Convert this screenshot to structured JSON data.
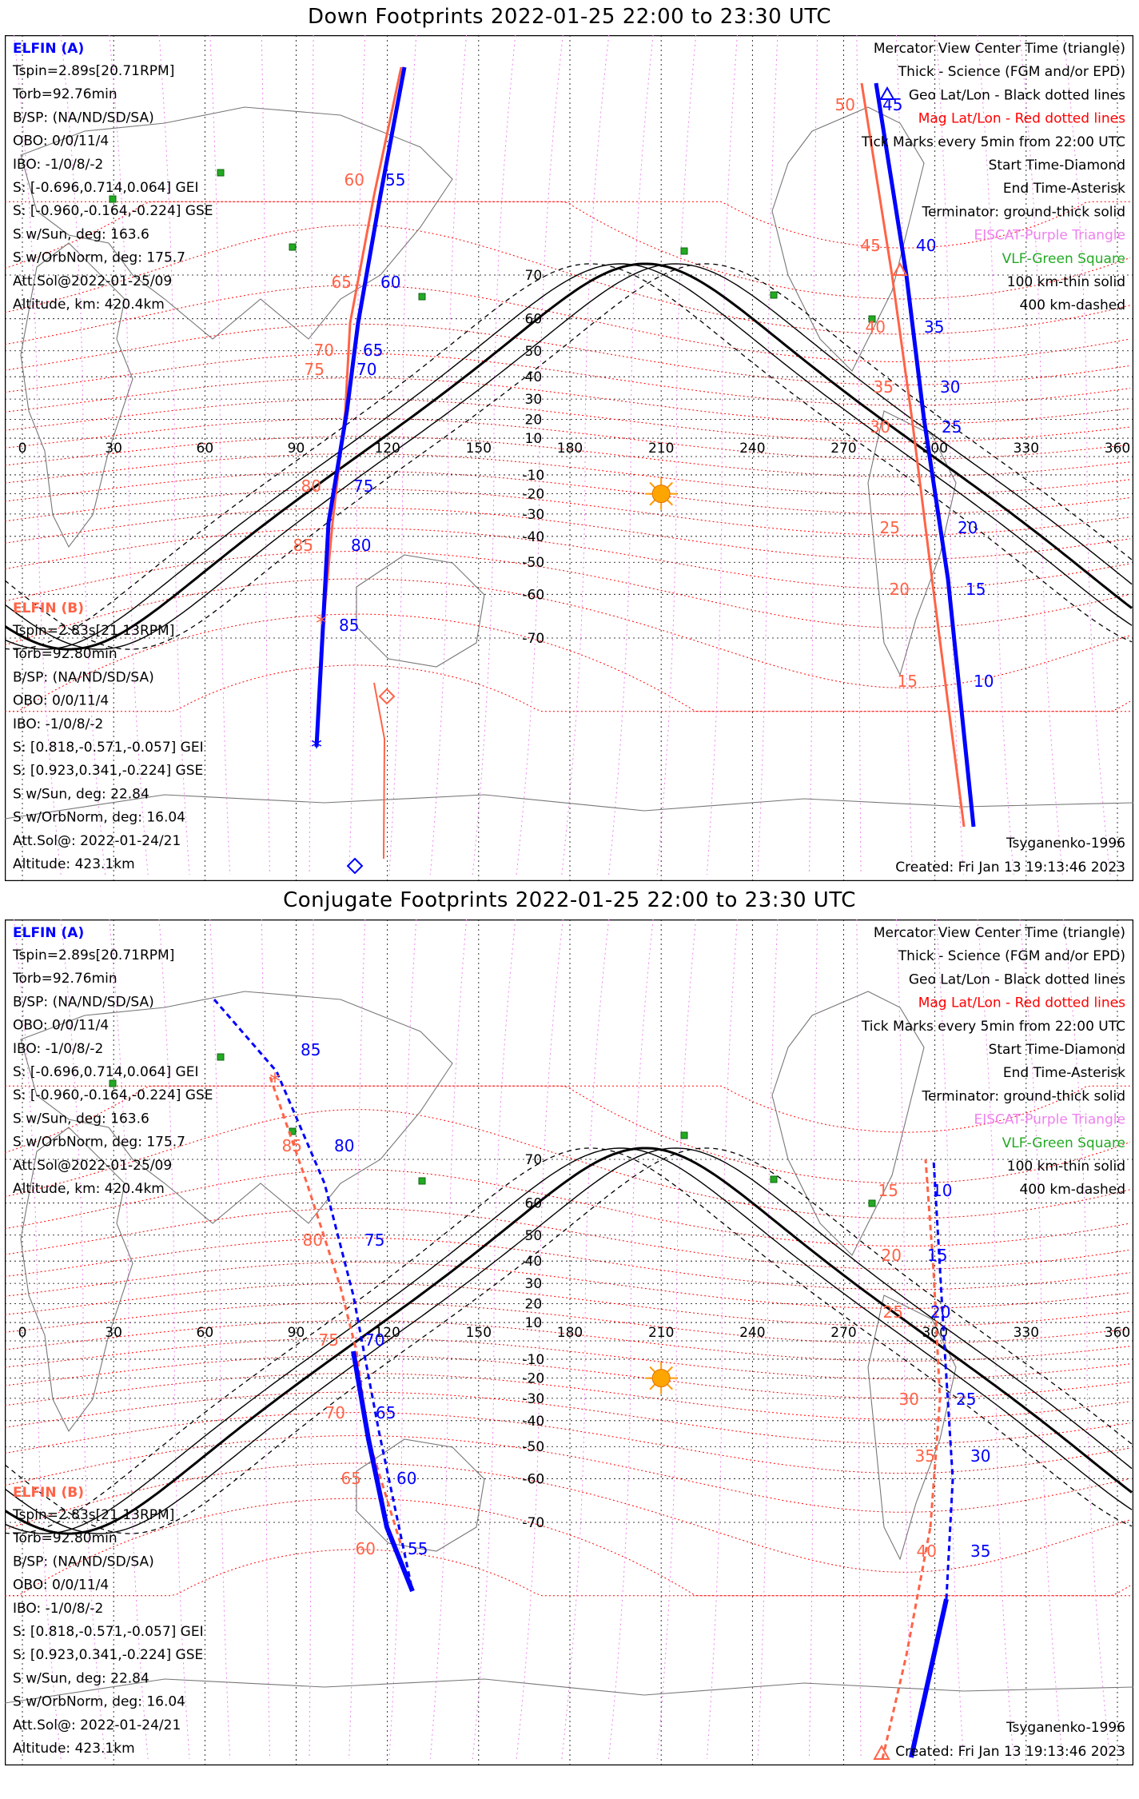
{
  "panels": [
    {
      "title": "Down Footprints 2022-01-25 22:00 to 23:30 UTC",
      "elfin_a": {
        "name": "ELFIN (A)",
        "lines": [
          "Tspin=2.89s[20.71RPM]",
          "Torb=92.76min",
          "B/SP: (NA/ND/SD/SA)",
          "OBO: 0/0/11/4",
          "IBO: -1/0/8/-2",
          "S: [-0.696,0.714,0.064] GEI",
          "S: [-0.960,-0.164,-0.224] GSE",
          "S w/Sun, deg: 163.6",
          "S w/OrbNorm, deg: 175.7",
          "Att.Sol@2022-01-25/09",
          "Altitude, km: 420.4km"
        ]
      },
      "elfin_b": {
        "name": "ELFIN (B)",
        "lines": [
          "Tspin=2.83s[21.13RPM]",
          "Torb=92.80min",
          "B/SP: (NA/ND/SD/SA)",
          "OBO: 0/0/11/4",
          "IBO: -1/0/8/-2",
          "S: [0.818,-0.571,-0.057] GEI",
          "S: [0.923,0.341,-0.224] GSE",
          "S w/Sun, deg: 22.84",
          "S w/OrbNorm, deg: 16.04",
          "Att.Sol@: 2022-01-24/21",
          "Altitude: 423.1km"
        ]
      },
      "legend": [
        {
          "text": "Mercator View Center Time (triangle)",
          "color": "#000000"
        },
        {
          "text": "Thick - Science (FGM and/or EPD)",
          "color": "#000000"
        },
        {
          "text": "Geo Lat/Lon - Black dotted lines",
          "color": "#000000"
        },
        {
          "text": "Mag Lat/Lon - Red dotted lines",
          "color": "#ff0000"
        },
        {
          "text": "Tick Marks every 5min from 22:00 UTC",
          "color": "#000000"
        },
        {
          "text": "Start Time-Diamond",
          "color": "#000000"
        },
        {
          "text": "End Time-Asterisk",
          "color": "#000000"
        },
        {
          "text": "Terminator: ground-thick solid",
          "color": "#000000"
        },
        {
          "text": "EISCAT-Purple Triangle",
          "color": "#ee82ee"
        },
        {
          "text": "VLF-Green Square",
          "color": "#22aa22"
        },
        {
          "text": "100 km-thin solid",
          "color": "#000000"
        },
        {
          "text": "400 km-dashed",
          "color": "#000000"
        }
      ],
      "model": "Tsyganenko-1996",
      "created": "Created: Fri Jan 13 19:13:46 2023"
    },
    {
      "title": "Conjugate Footprints 2022-01-25 22:00 to 23:30 UTC",
      "elfin_a": {
        "name": "ELFIN (A)",
        "lines": [
          "Tspin=2.89s[20.71RPM]",
          "Torb=92.76min",
          "B/SP: (NA/ND/SD/SA)",
          "OBO: 0/0/11/4",
          "IBO: -1/0/8/-2",
          "S: [-0.696,0.714,0.064] GEI",
          "S: [-0.960,-0.164,-0.224] GSE",
          "S w/Sun, deg: 163.6",
          "S w/OrbNorm, deg: 175.7",
          "Att.Sol@2022-01-25/09",
          "Altitude, km: 420.4km"
        ]
      },
      "elfin_b": {
        "name": "ELFIN (B)",
        "lines": [
          "Tspin=2.83s[21.13RPM]",
          "Torb=92.80min",
          "B/SP: (NA/ND/SD/SA)",
          "OBO: 0/0/11/4",
          "IBO: -1/0/8/-2",
          "S: [0.818,-0.571,-0.057] GEI",
          "S: [0.923,0.341,-0.224] GSE",
          "S w/Sun, deg: 22.84",
          "S w/OrbNorm, deg: 16.04",
          "Att.Sol@: 2022-01-24/21",
          "Altitude: 423.1km"
        ]
      },
      "legend": [
        {
          "text": "Mercator View Center Time (triangle)",
          "color": "#000000"
        },
        {
          "text": "Thick - Science (FGM and/or EPD)",
          "color": "#000000"
        },
        {
          "text": "Geo Lat/Lon - Black dotted lines",
          "color": "#000000"
        },
        {
          "text": "Mag Lat/Lon - Red dotted lines",
          "color": "#ff0000"
        },
        {
          "text": "Tick Marks every 5min from 22:00 UTC",
          "color": "#000000"
        },
        {
          "text": "Start Time-Diamond",
          "color": "#000000"
        },
        {
          "text": "End Time-Asterisk",
          "color": "#000000"
        },
        {
          "text": "Terminator: ground-thick solid",
          "color": "#000000"
        },
        {
          "text": "EISCAT-Purple Triangle",
          "color": "#ee82ee"
        },
        {
          "text": "VLF-Green Square",
          "color": "#22aa22"
        },
        {
          "text": "100 km-thin solid",
          "color": "#000000"
        },
        {
          "text": "400 km-dashed",
          "color": "#000000"
        }
      ],
      "model": "Tsyganenko-1996",
      "created": "Created: Fri Jan 13 19:13:46 2023"
    }
  ],
  "map": {
    "lon_ticks": [
      "0",
      "30",
      "60",
      "90",
      "120",
      "150",
      "180",
      "210",
      "240",
      "270",
      "300",
      "330",
      "360"
    ],
    "lat_ticks": [
      "70",
      "60",
      "50",
      "40",
      "30",
      "20",
      "10",
      "-10",
      "-20",
      "-30",
      "-40",
      "-50",
      "-60",
      "-70"
    ]
  },
  "tracks": {
    "down": {
      "elfin_a": {
        "color": "#0000ff",
        "labels_west": [
          "55",
          "60",
          "65",
          "70",
          "75",
          "80",
          "85"
        ],
        "labels_east": [
          "45",
          "40",
          "35",
          "30",
          "25",
          "20",
          "15",
          "10"
        ]
      },
      "elfin_b": {
        "color": "#ff6347",
        "labels_west": [
          "60",
          "65",
          "70",
          "75",
          "80",
          "85"
        ],
        "labels_east": [
          "50",
          "45",
          "40",
          "35",
          "30",
          "25",
          "20",
          "15"
        ]
      }
    },
    "conjugate": {
      "elfin_a": {
        "color": "#0000ff",
        "labels_west": [
          "85",
          "80",
          "75",
          "70",
          "65",
          "60",
          "55"
        ],
        "labels_east": [
          "10",
          "15",
          "20",
          "25",
          "30",
          "35"
        ]
      },
      "elfin_b": {
        "color": "#ff6347",
        "labels_west": [
          "85",
          "80",
          "75",
          "70",
          "65",
          "60"
        ],
        "labels_east": [
          "15",
          "20",
          "25",
          "30",
          "35",
          "40"
        ]
      }
    }
  }
}
